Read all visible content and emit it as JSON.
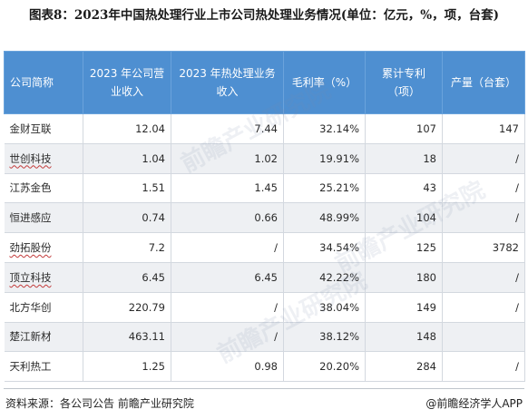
{
  "title": "图表8：2023年中国热处理行业上市公司热处理业务情况(单位：亿元，%，项，台套)",
  "table": {
    "headers": [
      "公司简称",
      "2023 年公司营业收入",
      "2023 年热处理业务收入",
      "毛利率（%）",
      "累计专利（项）",
      "产量（台套）"
    ],
    "rows": [
      [
        "金财互联",
        "12.04",
        "7.44",
        "32.14%",
        "107",
        "147"
      ],
      [
        "世创科技",
        "1.04",
        "1.02",
        "19.91%",
        "18",
        "/"
      ],
      [
        "江苏金色",
        "1.51",
        "1.45",
        "25.21%",
        "43",
        "/"
      ],
      [
        "恒进感应",
        "0.74",
        "0.66",
        "48.99%",
        "104",
        "/"
      ],
      [
        "劲拓股份",
        "7.2",
        "/",
        "34.54%",
        "125",
        "3782"
      ],
      [
        "顶立科技",
        "6.45",
        "6.45",
        "42.22%",
        "180",
        "/"
      ],
      [
        "北方华创",
        "220.79",
        "/",
        "38.04%",
        "149",
        "/"
      ],
      [
        "楚江新材",
        "463.11",
        "/",
        "38.12%",
        "148",
        ""
      ],
      [
        "天利热工",
        "1.25",
        "0.98",
        "20.20%",
        "284",
        "/"
      ]
    ]
  },
  "watermark": "前瞻产业研究院",
  "footer": {
    "source": "资料来源：各公司公告 前瞻产业研究院",
    "brand": "@前瞻经济学人APP"
  }
}
